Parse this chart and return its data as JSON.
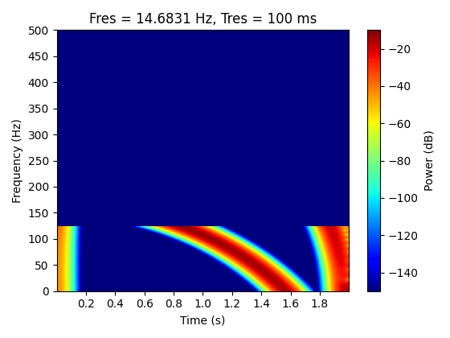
{
  "title": "Fres = 14.6831 Hz, Tres = 100 ms",
  "xlabel": "Time (s)",
  "ylabel": "Frequency (Hz)",
  "colorbar_label": "Power (dB)",
  "t_min": 0.0,
  "t_max": 2.0,
  "f_min": 0.0,
  "f_max": 500.0,
  "Nt": 500,
  "Nf": 400,
  "fres": 14.6831,
  "tres": 0.1,
  "R_t": 1.96,
  "R_f": 415.0,
  "sigma_t": 0.034,
  "peak_db": -13.0,
  "bg_db": -70.0,
  "vmin": -150,
  "vmax": -10,
  "cmap": "jet",
  "figsize": [
    5.6,
    4.2
  ],
  "dpi": 100
}
